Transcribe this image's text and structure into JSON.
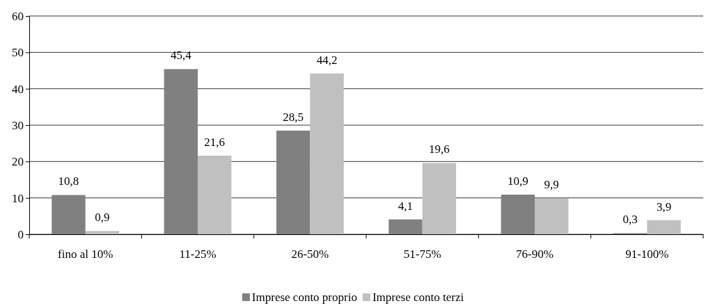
{
  "chart_data": {
    "type": "bar",
    "categories": [
      "fino al 10%",
      "11-25%",
      "26-50%",
      "51-75%",
      "76-90%",
      "91-100%"
    ],
    "series": [
      {
        "name": "Imprese conto proprio",
        "color": "#808080",
        "values": [
          10.8,
          45.4,
          28.5,
          4.1,
          10.9,
          0.3
        ],
        "value_labels": [
          "10,8",
          "45,4",
          "28,5",
          "4,1",
          "10,9",
          "0,3"
        ]
      },
      {
        "name": "Imprese conto terzi",
        "color": "#c0c0c0",
        "values": [
          0.9,
          21.6,
          44.2,
          19.6,
          9.9,
          3.9
        ],
        "value_labels": [
          "0,9",
          "21,6",
          "44,2",
          "19,6",
          "9,9",
          "3,9"
        ]
      }
    ],
    "ylim": [
      0,
      60
    ],
    "yticks": [
      0,
      10,
      20,
      30,
      40,
      50,
      60
    ],
    "grid": "y",
    "legend": "bottom"
  }
}
